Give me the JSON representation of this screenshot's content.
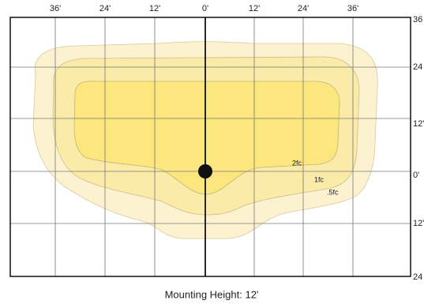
{
  "top_labels": [
    "36'",
    "24'",
    "12'",
    "0'",
    "12'",
    "24'",
    "36'"
  ],
  "right_labels": [
    "36",
    "24",
    "12'",
    "0'",
    "12'",
    "24"
  ],
  "contours": [
    {
      "label": ".5fc"
    },
    {
      "label": "1fc"
    },
    {
      "label": "2fc"
    }
  ],
  "caption": "Mounting Height: 12'"
}
